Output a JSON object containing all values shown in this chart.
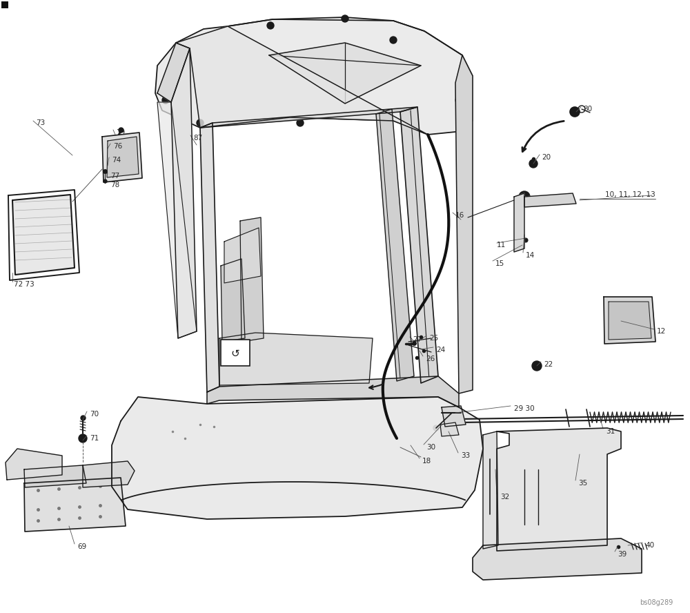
{
  "bg_color": "#ffffff",
  "line_color": "#1a1a1a",
  "label_color": "#2a2a2a",
  "watermark": "bs08g289",
  "figsize": [
    10.0,
    8.88
  ],
  "dpi": 100
}
